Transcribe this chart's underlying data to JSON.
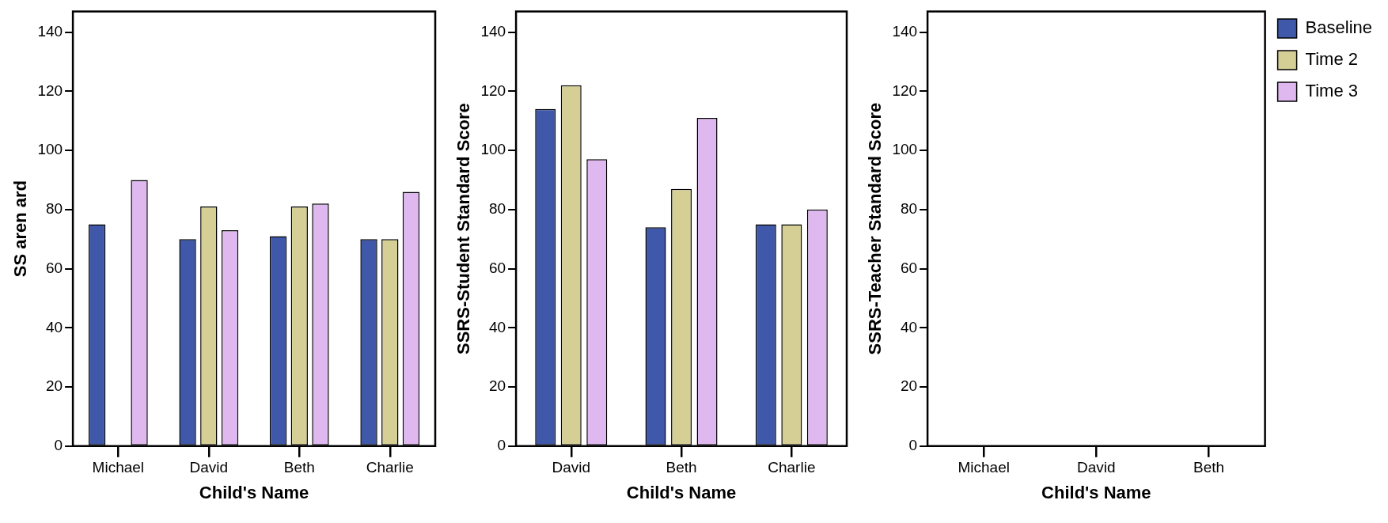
{
  "chart_data": [
    {
      "type": "bar",
      "xlabel": "Child's Name",
      "ylabel": "SS aren ard",
      "categories": [
        "Michael",
        "David",
        "Beth",
        "Charlie"
      ],
      "series": [
        {
          "color": "#3f58a9",
          "values": [
            75,
            70,
            71,
            70
          ]
        },
        {
          "color": "#d5cf96",
          "values": [
            null,
            81,
            81,
            70
          ]
        },
        {
          "color": "#dfb8f0",
          "values": [
            90,
            73,
            82,
            86
          ]
        }
      ],
      "ylim": [
        0,
        147
      ],
      "yticks": [
        0,
        20,
        40,
        60,
        80,
        100,
        120,
        140
      ],
      "grid": false,
      "legend": false
    },
    {
      "type": "bar",
      "xlabel": "Child's Name",
      "ylabel": "SSRS-Student Standard Score",
      "categories": [
        "David",
        "Beth",
        "Charlie"
      ],
      "series": [
        {
          "color": "#3f58a9",
          "values": [
            114,
            74,
            75
          ]
        },
        {
          "color": "#d5cf96",
          "values": [
            122,
            87,
            75
          ]
        },
        {
          "color": "#dfb8f0",
          "values": [
            97,
            111,
            80
          ]
        }
      ],
      "ylim": [
        0,
        147
      ],
      "yticks": [
        0,
        20,
        40,
        60,
        80,
        100,
        120,
        140
      ],
      "grid": false,
      "legend": false
    },
    {
      "type": "bar",
      "xlabel": "Child's Name",
      "ylabel": "SSRS-Teacher Standard Score",
      "categories": [
        "Michael",
        "David",
        "Beth"
      ],
      "series": [
        {
          "name": "Baseline",
          "color": "#3f58a9",
          "values": [
            null,
            null,
            null
          ]
        },
        {
          "name": "Time 2",
          "color": "#d5cf96",
          "values": [
            null,
            null,
            null
          ]
        },
        {
          "name": "Time 3",
          "color": "#dfb8f0",
          "values": [
            null,
            null,
            null
          ]
        }
      ],
      "ylim": [
        0,
        147
      ],
      "yticks": [
        0,
        20,
        40,
        60,
        80,
        100,
        120,
        140
      ],
      "grid": false,
      "legend": "right"
    }
  ]
}
